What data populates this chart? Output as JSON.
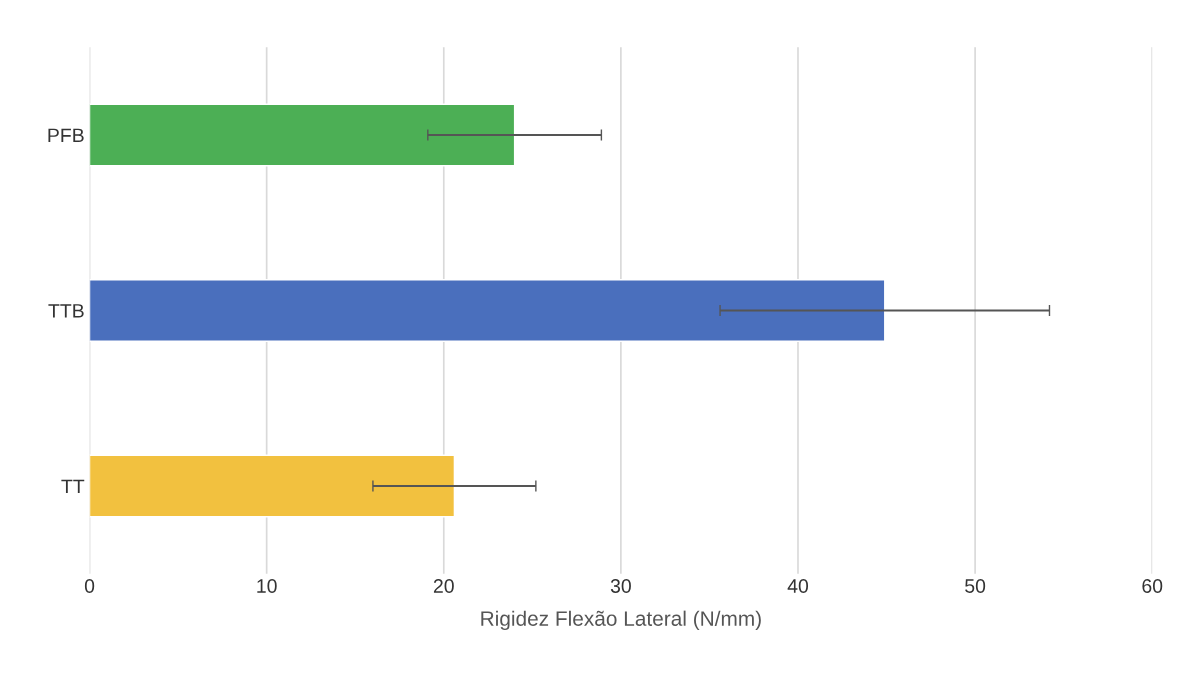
{
  "chart_data": {
    "type": "bar",
    "orientation": "horizontal",
    "categories": [
      "PFB",
      "TTB",
      "TT"
    ],
    "values": [
      24.0,
      44.9,
      20.6
    ],
    "errors": [
      4.9,
      9.3,
      4.6
    ],
    "colors": [
      "#4caf55",
      "#4a6fbd",
      "#f2c13f"
    ],
    "xlabel": "Rigidez Flexão Lateral (N/mm)",
    "xlim": [
      0,
      60
    ],
    "xticks": [
      0,
      10,
      20,
      30,
      40,
      50,
      60
    ],
    "grid": "x",
    "legend": false
  }
}
